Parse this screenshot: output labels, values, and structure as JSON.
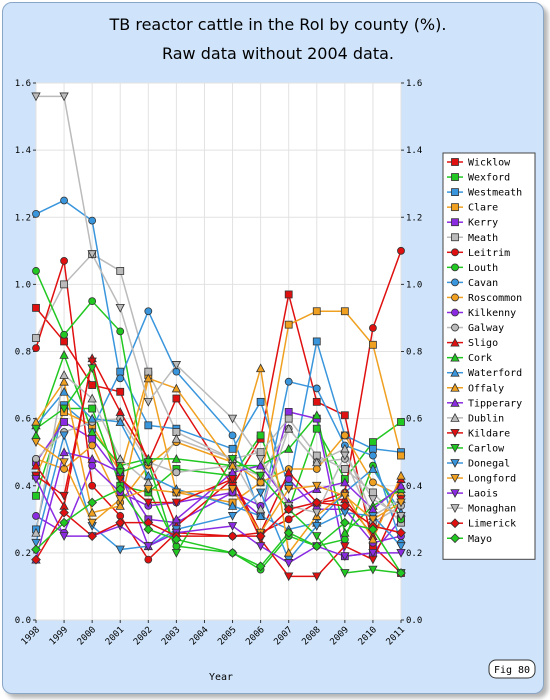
{
  "figure_label": "Fig 80",
  "chart_data": {
    "type": "line",
    "title": "TB reactor cattle in the RoI by county (%).",
    "subtitle": "Raw data without 2004 data.",
    "xlabel": "Year",
    "ylabel": "",
    "x": [
      "1998",
      "1999",
      "2000",
      "2001",
      "2002",
      "2003",
      "2004",
      "2005",
      "2006",
      "2007",
      "2008",
      "2009",
      "2010",
      "2011"
    ],
    "yticks": [
      "0.0",
      "0.2",
      "0.4",
      "0.6",
      "0.8",
      "1.0",
      "1.2",
      "1.4",
      "1.6"
    ],
    "ylim": [
      0,
      1.6
    ],
    "grid": true,
    "legend_position": "right",
    "series": [
      {
        "name": "Wicklow",
        "color": "#e01010",
        "marker": "square",
        "values": [
          0.93,
          0.83,
          0.7,
          0.68,
          0.47,
          0.66,
          null,
          0.4,
          0.54,
          0.97,
          0.65,
          0.61,
          0.22,
          0.14
        ]
      },
      {
        "name": "Wexford",
        "color": "#22c822",
        "marker": "square",
        "values": [
          0.37,
          0.63,
          0.63,
          0.4,
          0.38,
          0.45,
          null,
          0.43,
          0.55,
          0.33,
          0.57,
          0.42,
          0.53,
          0.59
        ]
      },
      {
        "name": "Westmeath",
        "color": "#3a96dc",
        "marker": "square",
        "values": [
          0.27,
          0.64,
          0.57,
          0.74,
          0.58,
          0.57,
          null,
          0.51,
          0.65,
          0.4,
          0.83,
          0.55,
          0.51,
          0.5
        ]
      },
      {
        "name": "Clare",
        "color": "#f0a020",
        "marker": "square",
        "values": [
          0.43,
          0.62,
          0.58,
          0.44,
          0.73,
          0.38,
          null,
          0.35,
          0.41,
          0.88,
          0.92,
          0.92,
          0.82,
          0.49
        ]
      },
      {
        "name": "Kerry",
        "color": "#8a2be2",
        "marker": "square",
        "values": [
          0.47,
          0.59,
          0.54,
          0.43,
          0.3,
          0.29,
          null,
          0.38,
          0.31,
          0.62,
          0.6,
          0.19,
          0.2,
          0.3
        ]
      },
      {
        "name": "Meath",
        "color": "#bbbbbb",
        "marker": "square",
        "values": [
          0.84,
          1.0,
          1.09,
          1.04,
          0.74,
          0.56,
          null,
          0.48,
          0.5,
          0.6,
          0.49,
          0.45,
          0.38,
          0.29
        ]
      },
      {
        "name": "Leitrim",
        "color": "#e01010",
        "marker": "circle",
        "values": [
          0.81,
          1.07,
          0.4,
          0.31,
          0.18,
          0.26,
          null,
          0.25,
          0.26,
          0.3,
          0.35,
          0.38,
          0.87,
          1.1
        ]
      },
      {
        "name": "Louth",
        "color": "#22c822",
        "marker": "circle",
        "values": [
          1.04,
          0.85,
          0.95,
          0.86,
          0.39,
          0.22,
          null,
          0.2,
          0.15,
          0.25,
          0.22,
          0.24,
          0.46,
          0.3
        ]
      },
      {
        "name": "Cavan",
        "color": "#3a96dc",
        "marker": "circle",
        "values": [
          1.21,
          1.25,
          1.19,
          0.72,
          0.92,
          0.74,
          null,
          0.55,
          0.31,
          0.71,
          0.69,
          0.52,
          0.49,
          0.23
        ]
      },
      {
        "name": "Roscommon",
        "color": "#f0a020",
        "marker": "circle",
        "values": [
          0.48,
          0.45,
          0.52,
          0.35,
          0.46,
          0.53,
          null,
          0.47,
          0.41,
          0.45,
          0.45,
          0.55,
          0.41,
          0.37
        ]
      },
      {
        "name": "Kilkenny",
        "color": "#8a2be2",
        "marker": "circle",
        "values": [
          0.31,
          0.26,
          0.46,
          0.38,
          0.34,
          0.35,
          null,
          0.38,
          0.34,
          0.42,
          0.33,
          0.33,
          0.23,
          0.25
        ]
      },
      {
        "name": "Galway",
        "color": "#bbbbbb",
        "marker": "circle",
        "values": [
          0.48,
          0.56,
          0.59,
          0.6,
          0.47,
          0.44,
          null,
          0.46,
          0.43,
          0.57,
          0.47,
          0.48,
          0.29,
          0.34
        ]
      },
      {
        "name": "Sligo",
        "color": "#e01010",
        "marker": "triangle",
        "values": [
          0.46,
          0.34,
          0.78,
          0.62,
          0.48,
          0.28,
          null,
          0.42,
          0.26,
          0.44,
          0.35,
          0.36,
          0.25,
          0.42
        ]
      },
      {
        "name": "Cork",
        "color": "#22c822",
        "marker": "triangle",
        "values": [
          0.55,
          0.79,
          0.56,
          0.46,
          0.48,
          0.48,
          null,
          0.46,
          0.46,
          0.51,
          0.61,
          0.26,
          0.34,
          0.39
        ]
      },
      {
        "name": "Waterford",
        "color": "#3a96dc",
        "marker": "triangle",
        "values": [
          0.58,
          0.68,
          0.6,
          0.59,
          0.43,
          0.39,
          null,
          0.34,
          0.31,
          0.27,
          0.29,
          0.38,
          0.45,
          0.32
        ]
      },
      {
        "name": "Offaly",
        "color": "#f0a020",
        "marker": "triangle",
        "values": [
          0.59,
          0.71,
          0.32,
          0.34,
          0.72,
          0.69,
          null,
          0.46,
          0.75,
          0.2,
          0.31,
          0.38,
          0.24,
          0.43
        ]
      },
      {
        "name": "Tipperary",
        "color": "#8a2be2",
        "marker": "triangle",
        "values": [
          0.18,
          0.5,
          0.48,
          0.44,
          0.22,
          0.3,
          null,
          0.44,
          0.46,
          0.35,
          0.39,
          0.41,
          0.33,
          0.4
        ]
      },
      {
        "name": "Dublin",
        "color": "#bbbbbb",
        "marker": "triangle",
        "values": [
          0.26,
          0.73,
          0.66,
          0.48,
          0.41,
          0.54,
          null,
          0.48,
          0.33,
          0.57,
          0.47,
          0.51,
          0.31,
          0.36
        ]
      },
      {
        "name": "Kildare",
        "color": "#e01010",
        "marker": "triangle-down",
        "values": [
          0.43,
          0.37,
          0.77,
          0.42,
          0.35,
          0.35,
          null,
          0.42,
          0.24,
          0.13,
          0.13,
          0.22,
          0.18,
          0.36
        ]
      },
      {
        "name": "Carlow",
        "color": "#22c822",
        "marker": "triangle-down",
        "values": [
          0.57,
          0.63,
          0.75,
          0.44,
          0.47,
          0.2,
          null,
          0.48,
          0.43,
          0.33,
          0.25,
          0.14,
          0.15,
          0.14
        ]
      },
      {
        "name": "Donegal",
        "color": "#3a96dc",
        "marker": "triangle-down",
        "values": [
          0.23,
          0.55,
          0.28,
          0.21,
          0.22,
          0.27,
          null,
          0.31,
          0.38,
          0.18,
          0.28,
          0.32,
          0.31,
          0.22
        ]
      },
      {
        "name": "Longford",
        "color": "#f0a020",
        "marker": "triangle-down",
        "values": [
          0.53,
          0.47,
          0.29,
          0.36,
          0.39,
          0.38,
          null,
          0.39,
          0.26,
          0.39,
          0.4,
          0.37,
          0.3,
          0.35
        ]
      },
      {
        "name": "Laois",
        "color": "#8a2be2",
        "marker": "triangle-down",
        "values": [
          0.42,
          0.25,
          0.25,
          0.28,
          0.22,
          0.26,
          null,
          0.28,
          0.22,
          0.17,
          0.22,
          0.19,
          0.2,
          0.2
        ]
      },
      {
        "name": "Monaghan",
        "color": "#bbbbbb",
        "marker": "triangle-down",
        "values": [
          1.56,
          1.56,
          1.09,
          0.93,
          0.65,
          0.76,
          null,
          0.6,
          0.48,
          0.34,
          0.32,
          0.49,
          0.36,
          0.31
        ]
      },
      {
        "name": "Limerick",
        "color": "#e01010",
        "marker": "diamond",
        "values": [
          0.18,
          0.32,
          0.25,
          0.29,
          0.29,
          0.25,
          null,
          0.25,
          0.25,
          0.33,
          0.35,
          0.34,
          0.28,
          0.26
        ]
      },
      {
        "name": "Mayo",
        "color": "#22c822",
        "marker": "diamond",
        "values": [
          0.21,
          0.29,
          0.35,
          0.39,
          0.27,
          0.24,
          null,
          0.2,
          0.16,
          0.26,
          0.22,
          0.29,
          0.27,
          0.14
        ]
      }
    ]
  }
}
